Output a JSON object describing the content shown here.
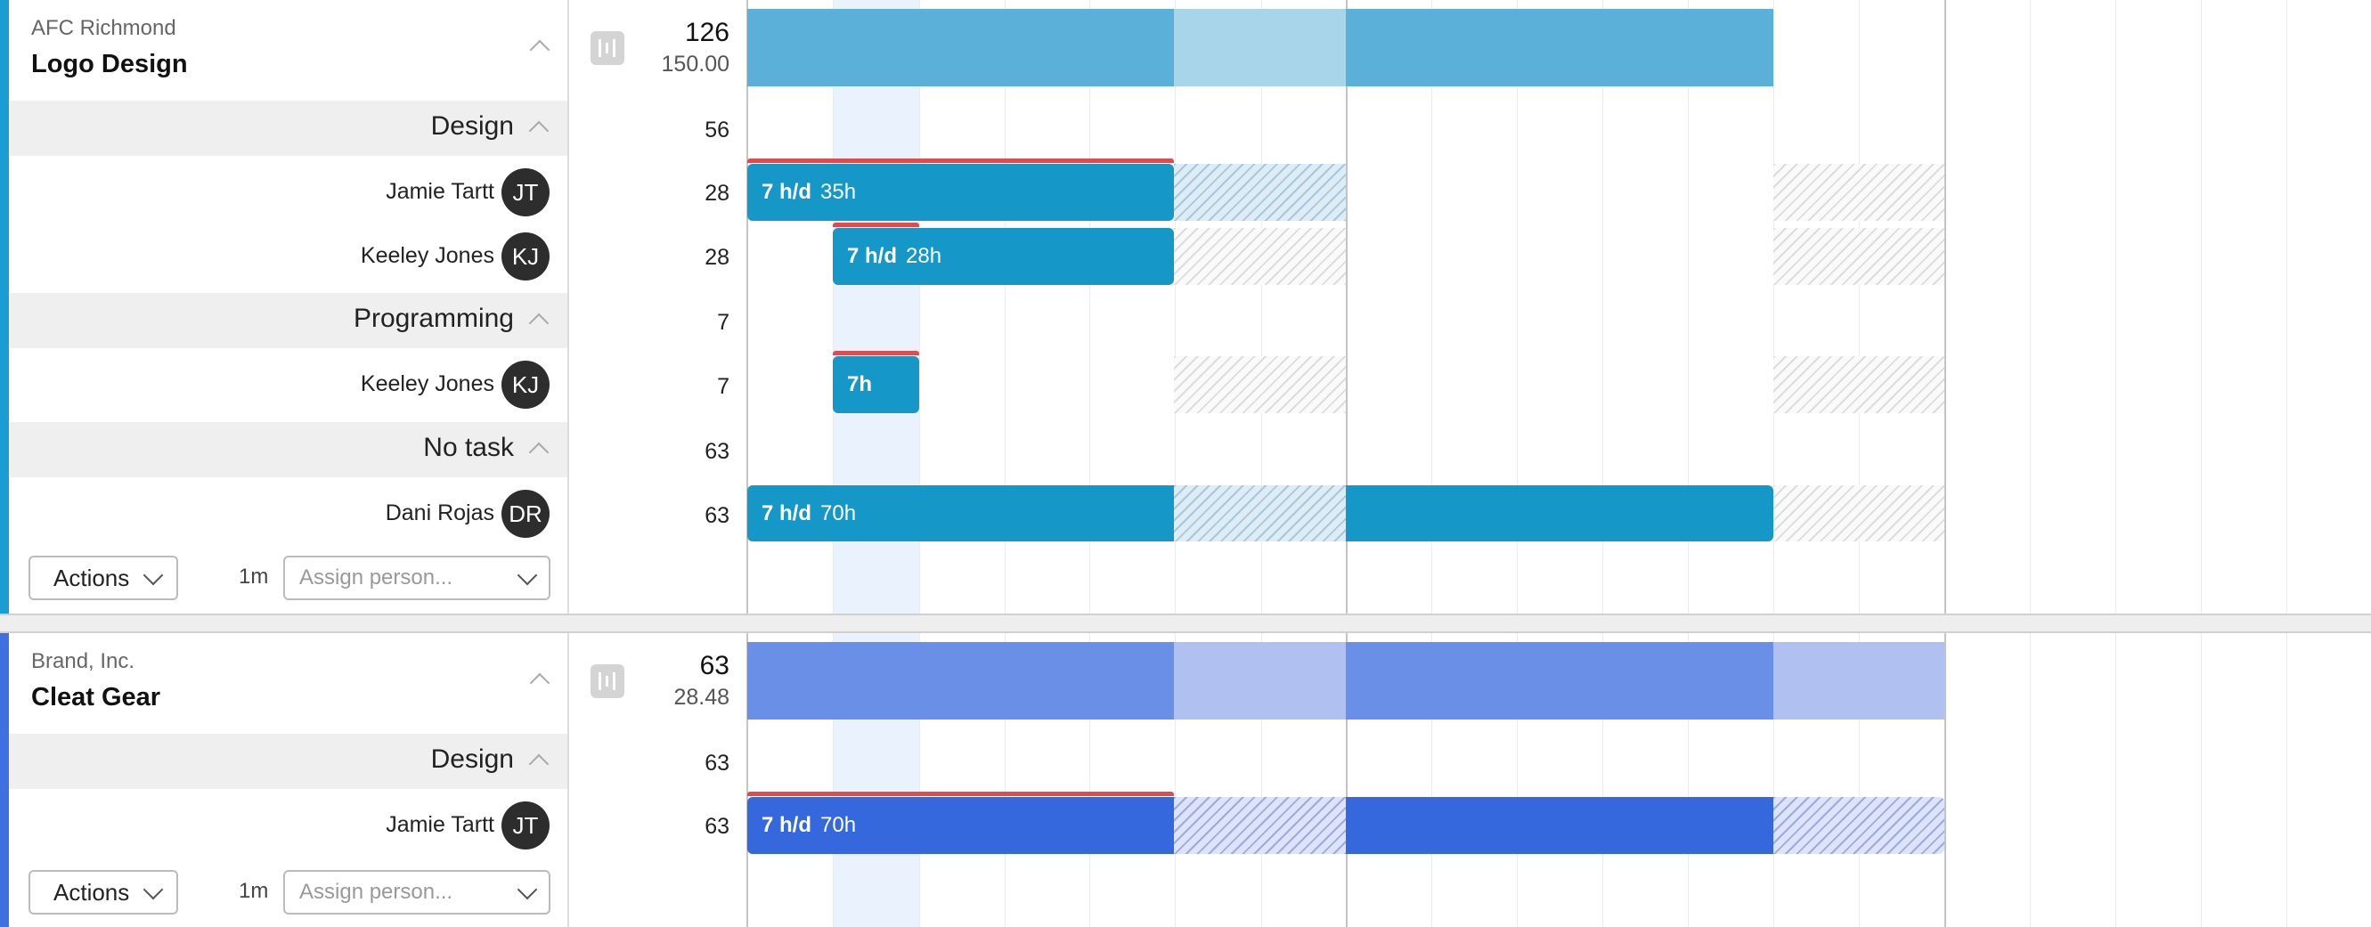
{
  "colors": {
    "project1_accent": "#1a9dd4",
    "project2_accent": "#3f6fe0",
    "project1_summary_bar": "#5ab0d8",
    "project1_summary_light": "#a9d5ea",
    "project1_bar": "#1597c8",
    "project2_summary_bar": "#6a8fe6",
    "project2_summary_light": "#b0c1f1",
    "project2_bar": "#3568dc",
    "overtime_line": "#e04b4b"
  },
  "projects": [
    {
      "client": "AFC Richmond",
      "name": "Logo Design",
      "summary": {
        "hours": "126",
        "budget": "150.00"
      },
      "tasks": [
        {
          "name": "Design",
          "hours": "56",
          "people": [
            {
              "name": "Jamie Tartt",
              "initials": "JT",
              "hours": "28",
              "bar_rate": "7 h/d",
              "bar_total": "35h"
            },
            {
              "name": "Keeley Jones",
              "initials": "KJ",
              "hours": "28",
              "bar_rate": "7 h/d",
              "bar_total": "28h"
            }
          ]
        },
        {
          "name": "Programming",
          "hours": "7",
          "people": [
            {
              "name": "Keeley Jones",
              "initials": "KJ",
              "hours": "7",
              "bar_label": "7h"
            }
          ]
        },
        {
          "name": "No task",
          "hours": "63",
          "people": [
            {
              "name": "Dani Rojas",
              "initials": "DR",
              "hours": "63",
              "bar_rate": "7 h/d",
              "bar_total": "70h"
            }
          ]
        }
      ],
      "footer": {
        "actions_label": "Actions",
        "duration": "1m",
        "assign_placeholder": "Assign person..."
      }
    },
    {
      "client": "Brand, Inc.",
      "name": "Cleat Gear",
      "summary": {
        "hours": "63",
        "budget": "28.48"
      },
      "tasks": [
        {
          "name": "Design",
          "hours": "63",
          "people": [
            {
              "name": "Jamie Tartt",
              "initials": "JT",
              "hours": "63",
              "bar_rate": "7 h/d",
              "bar_total": "70h"
            }
          ]
        }
      ],
      "footer": {
        "actions_label": "Actions",
        "duration": "1m",
        "assign_placeholder": "Assign person..."
      }
    }
  ]
}
